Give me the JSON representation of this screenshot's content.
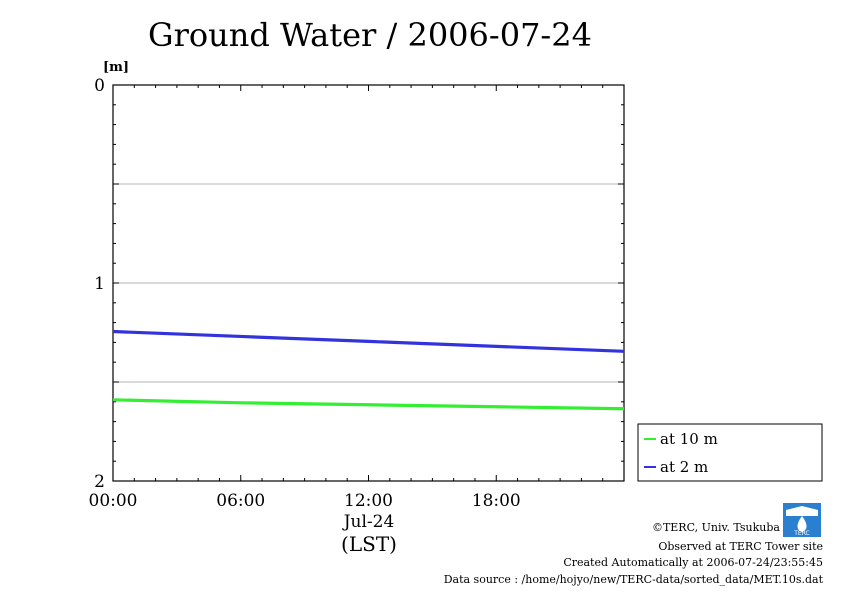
{
  "chart_data": {
    "type": "line",
    "title": "Ground Water / 2006-07-24",
    "ylabel": "[m]",
    "xlabel": "(LST)",
    "date_label": "Jul-24",
    "xlim": [
      0,
      24
    ],
    "ylim": [
      0,
      2
    ],
    "y_inverted": true,
    "x_ticks": [
      0,
      6,
      12,
      18
    ],
    "x_tick_labels": [
      "00:00",
      "06:00",
      "12:00",
      "18:00"
    ],
    "y_ticks": [
      0,
      1,
      2
    ],
    "y_tick_labels": [
      "0",
      "1",
      "2"
    ],
    "grid": true,
    "legend_position": "outside-right",
    "series": [
      {
        "name": "at 10 m",
        "color": "#33ee33",
        "x": [
          0,
          6,
          12,
          18,
          24
        ],
        "values": [
          1.59,
          1.605,
          1.615,
          1.625,
          1.635
        ]
      },
      {
        "name": "at 2 m",
        "color": "#3333dd",
        "x": [
          0,
          6,
          12,
          18,
          24
        ],
        "values": [
          1.245,
          1.27,
          1.295,
          1.32,
          1.345
        ]
      }
    ]
  },
  "footer": {
    "copyright": "©TERC, Univ. Tsukuba",
    "observed": "Observed at TERC Tower site",
    "created": "Created Automatically at 2006-07-24/23:55:45",
    "source": "Data source : /home/hojyo/new/TERC-data/sorted_data/MET.10s.dat"
  },
  "logo": {
    "text": "TERC"
  }
}
